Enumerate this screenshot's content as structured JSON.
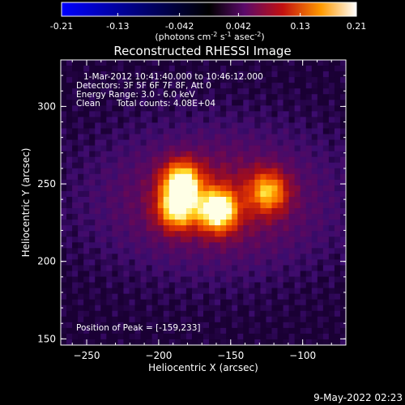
{
  "colorbar": {
    "ticks": [
      "-0.21",
      "-0.13",
      "-0.042",
      "0.042",
      "0.13",
      "0.21"
    ],
    "tick_values": [
      -0.21,
      -0.13,
      -0.042,
      0.042,
      0.13,
      0.21
    ],
    "range": [
      -0.21,
      0.21
    ],
    "units_text": "(photons cm",
    "units_sup1": "-2",
    "units_mid": " s",
    "units_sup2": "-1",
    "units_end": " asec",
    "units_sup3": "-2",
    "units_close": ")"
  },
  "chart_data": {
    "type": "heatmap",
    "title": "Reconstructed RHESSI Image",
    "xlabel": "Heliocentric X (arcsec)",
    "ylabel": "Heliocentric Y (arcsec)",
    "xlim": [
      -268,
      -70
    ],
    "ylim": [
      146,
      330
    ],
    "xticks": [
      -250,
      -200,
      -150,
      -100
    ],
    "yticks": [
      150,
      200,
      250,
      300
    ],
    "colormap": "hot-with-negative-blue",
    "sources": [
      {
        "x": -159,
        "y": 233,
        "peak": 1.0
      },
      {
        "x": -184,
        "y": 251,
        "peak": 0.88
      },
      {
        "x": -187,
        "y": 234,
        "peak": 0.78
      },
      {
        "x": -124,
        "y": 245,
        "peak": 0.62
      }
    ],
    "annotations": {
      "time": "1-Mar-2012 10:41:40.000 to 10:46:12.000",
      "detectors": "Detectors: 3F 5F 6F 7F 8F, Att 0",
      "energy": "Energy Range: 3.0 - 6.0 keV",
      "method": "Clean",
      "counts": "Total counts: 4.08E+04",
      "peak": "Position of Peak = [-159,233]"
    }
  },
  "footer": {
    "timestamp": "9-May-2022 02:23"
  }
}
